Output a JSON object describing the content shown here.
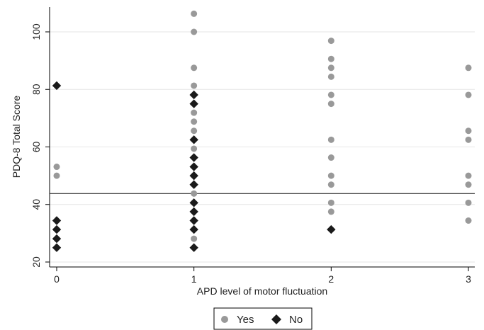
{
  "chart_data": {
    "type": "scatter",
    "title": "",
    "xlabel": "APD level of motor fluctuation",
    "ylabel": "PDQ-8 Total Score",
    "xlim": [
      -0.05,
      3.05
    ],
    "ylim": [
      18,
      110
    ],
    "xticks": [
      0,
      1,
      2,
      3
    ],
    "yticks": [
      20,
      40,
      60,
      80,
      100
    ],
    "grid": true,
    "reference_line_y": 43.8,
    "legend_position": "bottom-center",
    "series": [
      {
        "name": "Yes",
        "marker": "circle",
        "color": "#999999",
        "points": [
          {
            "x": 0,
            "y": 53.1
          },
          {
            "x": 0,
            "y": 50.0
          },
          {
            "x": 1,
            "y": 106.3
          },
          {
            "x": 1,
            "y": 100.0
          },
          {
            "x": 1,
            "y": 87.5
          },
          {
            "x": 1,
            "y": 81.3
          },
          {
            "x": 1,
            "y": 71.9
          },
          {
            "x": 1,
            "y": 68.8
          },
          {
            "x": 1,
            "y": 65.6
          },
          {
            "x": 1,
            "y": 59.4
          },
          {
            "x": 1,
            "y": 43.8
          },
          {
            "x": 1,
            "y": 28.1
          },
          {
            "x": 2,
            "y": 96.9
          },
          {
            "x": 2,
            "y": 90.6
          },
          {
            "x": 2,
            "y": 87.5
          },
          {
            "x": 2,
            "y": 84.4
          },
          {
            "x": 2,
            "y": 78.1
          },
          {
            "x": 2,
            "y": 75.0
          },
          {
            "x": 2,
            "y": 62.5
          },
          {
            "x": 2,
            "y": 56.3
          },
          {
            "x": 2,
            "y": 50.0
          },
          {
            "x": 2,
            "y": 46.9
          },
          {
            "x": 2,
            "y": 40.6
          },
          {
            "x": 2,
            "y": 37.5
          },
          {
            "x": 3,
            "y": 87.5
          },
          {
            "x": 3,
            "y": 78.1
          },
          {
            "x": 3,
            "y": 65.6
          },
          {
            "x": 3,
            "y": 62.5
          },
          {
            "x": 3,
            "y": 50.0
          },
          {
            "x": 3,
            "y": 46.9
          },
          {
            "x": 3,
            "y": 40.6
          },
          {
            "x": 3,
            "y": 34.4
          }
        ]
      },
      {
        "name": "No",
        "marker": "diamond",
        "color": "#1a1a1a",
        "points": [
          {
            "x": 0,
            "y": 81.3
          },
          {
            "x": 0,
            "y": 34.4
          },
          {
            "x": 0,
            "y": 31.3
          },
          {
            "x": 0,
            "y": 28.1
          },
          {
            "x": 0,
            "y": 25.0
          },
          {
            "x": 1,
            "y": 78.1
          },
          {
            "x": 1,
            "y": 75.0
          },
          {
            "x": 1,
            "y": 62.5
          },
          {
            "x": 1,
            "y": 56.3
          },
          {
            "x": 1,
            "y": 53.1
          },
          {
            "x": 1,
            "y": 50.0
          },
          {
            "x": 1,
            "y": 46.9
          },
          {
            "x": 1,
            "y": 40.6
          },
          {
            "x": 1,
            "y": 37.5
          },
          {
            "x": 1,
            "y": 34.4
          },
          {
            "x": 1,
            "y": 31.3
          },
          {
            "x": 1,
            "y": 25.0
          },
          {
            "x": 2,
            "y": 31.3
          }
        ]
      }
    ]
  }
}
